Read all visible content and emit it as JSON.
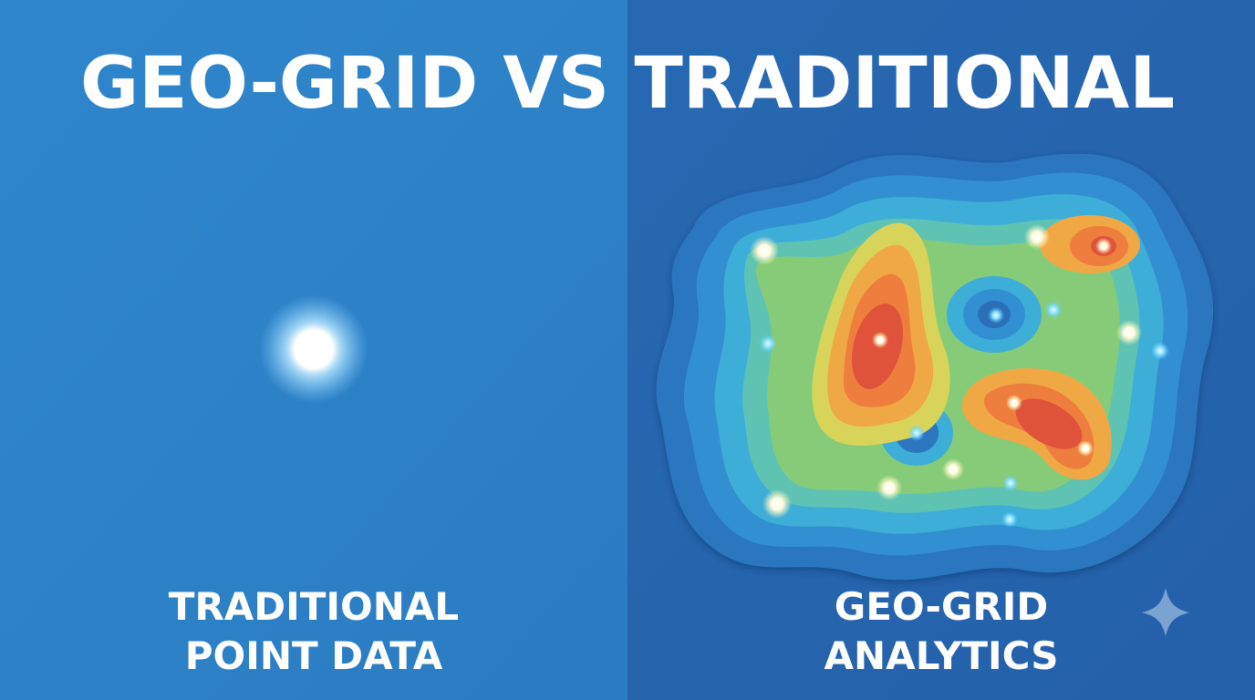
{
  "title": "GEO-GRID VS TRADITIONAL",
  "left_panel": {
    "label_lines": [
      "TRADITIONAL",
      "POINT DATA"
    ]
  },
  "right_panel": {
    "label_lines": [
      "GEO-GRID",
      "ANALYTICS"
    ]
  }
}
